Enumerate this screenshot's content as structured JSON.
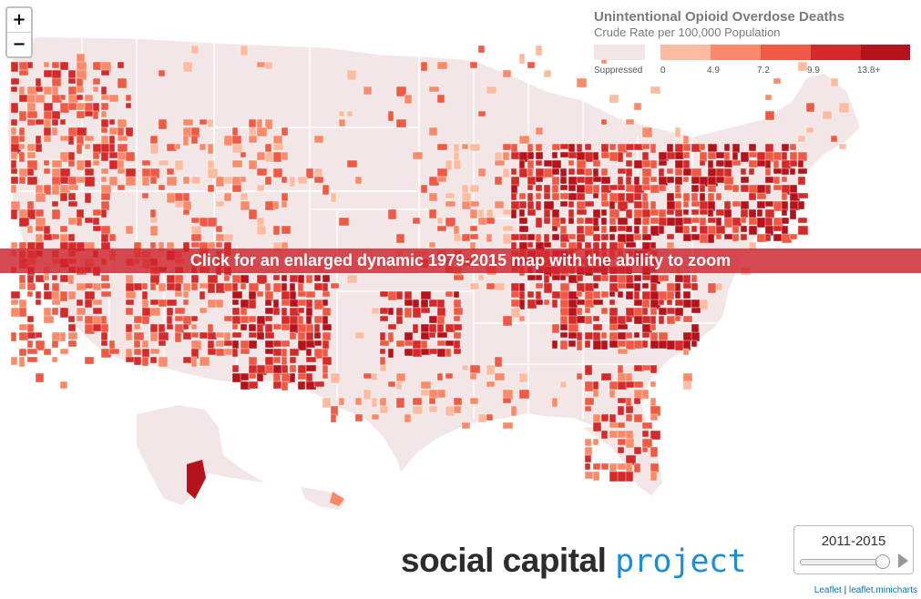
{
  "map": {
    "title": "Unintentional Opioid Overdose Deaths",
    "subtitle": "Crude Rate per 100,000 Population",
    "legend": [
      {
        "label": "Suppressed",
        "color": "#f3e6e6"
      },
      {
        "label": "0",
        "color": "#fdbba1"
      },
      {
        "label": "4.9",
        "color": "#fb8a6a"
      },
      {
        "label": "7.2",
        "color": "#f05a44"
      },
      {
        "label": "9.9",
        "color": "#d52a2a"
      },
      {
        "label": "13.8+",
        "color": "#b5121b"
      }
    ],
    "banner": "Click for an enlarged dynamic 1979-2015 map with the ability to zoom",
    "zoom_in": "+",
    "zoom_out": "−",
    "brand_part1": "social capital ",
    "brand_part2": "project",
    "time_period": "2011-2015",
    "attribution": {
      "leaflet": "Leaflet",
      "sep": " | ",
      "minicharts": "leaflet.minicharts"
    },
    "colors": {
      "land": "#f3e6e6",
      "border": "#ffffff",
      "brand_blue": "#1a8fd8"
    }
  }
}
